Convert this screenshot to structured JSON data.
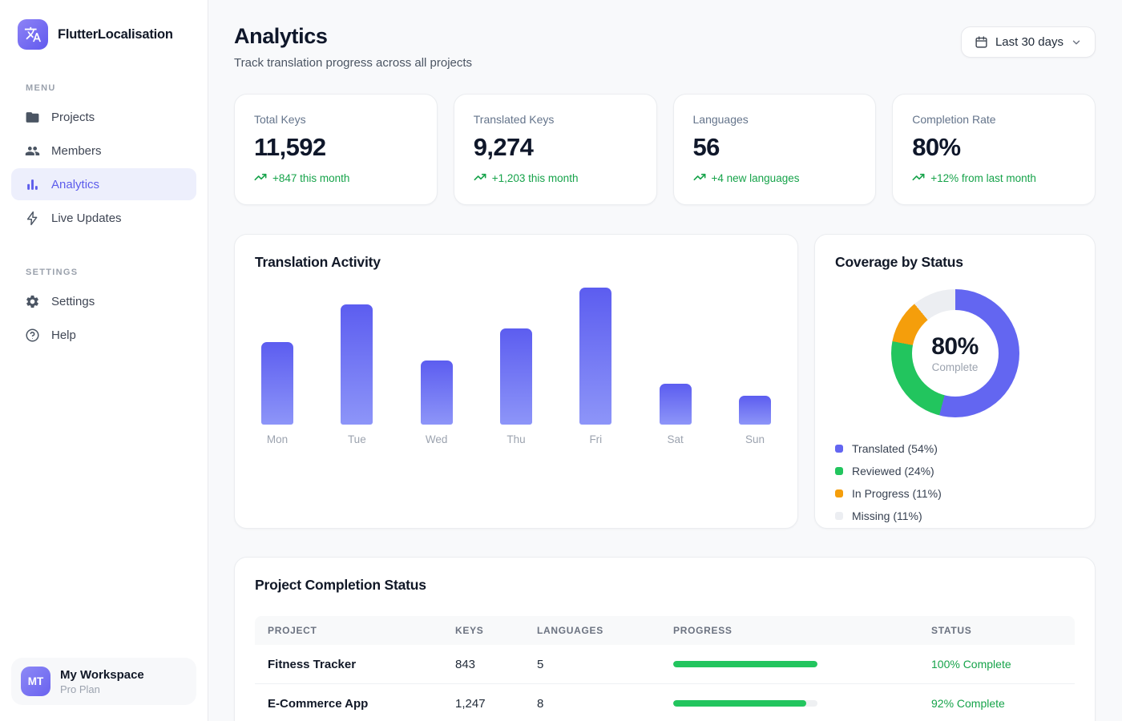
{
  "app": {
    "name": "FlutterLocalisation"
  },
  "sidebar": {
    "menu_label": "MENU",
    "settings_label": "SETTINGS",
    "menu": [
      {
        "label": "Projects",
        "icon": "folder-icon",
        "active": false
      },
      {
        "label": "Members",
        "icon": "members-icon",
        "active": false
      },
      {
        "label": "Analytics",
        "icon": "bar-chart-icon",
        "active": true
      },
      {
        "label": "Live Updates",
        "icon": "lightning-icon",
        "active": false
      }
    ],
    "settings": [
      {
        "label": "Settings",
        "icon": "gear-icon"
      },
      {
        "label": "Help",
        "icon": "help-icon"
      }
    ],
    "workspace": {
      "initials": "MT",
      "name": "My Workspace",
      "plan": "Pro Plan"
    }
  },
  "header": {
    "title": "Analytics",
    "subtitle": "Track translation progress across all projects",
    "date_filter": "Last 30 days"
  },
  "stats": [
    {
      "label": "Total Keys",
      "value": "11,592",
      "trend": "+847 this month"
    },
    {
      "label": "Translated Keys",
      "value": "9,274",
      "trend": "+1,203 this month"
    },
    {
      "label": "Languages",
      "value": "56",
      "trend": "+4 new languages"
    },
    {
      "label": "Completion Rate",
      "value": "80%",
      "trend": "+12% from last month"
    }
  ],
  "chart_data": [
    {
      "type": "bar",
      "title": "Translation Activity",
      "categories": [
        "Mon",
        "Tue",
        "Wed",
        "Thu",
        "Fri",
        "Sat",
        "Sun"
      ],
      "values": [
        60,
        88,
        47,
        70,
        100,
        30,
        21
      ],
      "ylim": [
        0,
        100
      ],
      "xlabel": "",
      "ylabel": "",
      "grid": false,
      "bar_gradient": [
        "#5c5df0",
        "#8d95f8"
      ]
    },
    {
      "type": "pie",
      "title": "Coverage by Status",
      "center_value": "80%",
      "center_label": "Complete",
      "legend_position": "bottom-left",
      "segments": [
        {
          "label": "Translated (54%)",
          "value": 54,
          "color": "#6366f1"
        },
        {
          "label": "Reviewed (24%)",
          "value": 24,
          "color": "#22c55e"
        },
        {
          "label": "In Progress (11%)",
          "value": 11,
          "color": "#f59e0b"
        },
        {
          "label": "Missing (11%)",
          "value": 11,
          "color": "#eceef2"
        }
      ]
    }
  ],
  "table": {
    "title": "Project Completion Status",
    "columns": [
      "Project",
      "Keys",
      "Languages",
      "Progress",
      "Status"
    ],
    "rows": [
      {
        "project": "Fitness Tracker",
        "keys": "843",
        "languages": "5",
        "progress": 100,
        "status": "100% Complete"
      },
      {
        "project": "E-Commerce App",
        "keys": "1,247",
        "languages": "8",
        "progress": 92,
        "status": "92% Complete"
      }
    ]
  },
  "colors": {
    "accent": "#6366f1",
    "accent_light_bg": "#edeffc",
    "green": "#22c55e",
    "green_text": "#16a34a",
    "orange": "#f59e0b",
    "missing_gray": "#eceef2",
    "main_bg": "#f8f9fb"
  }
}
